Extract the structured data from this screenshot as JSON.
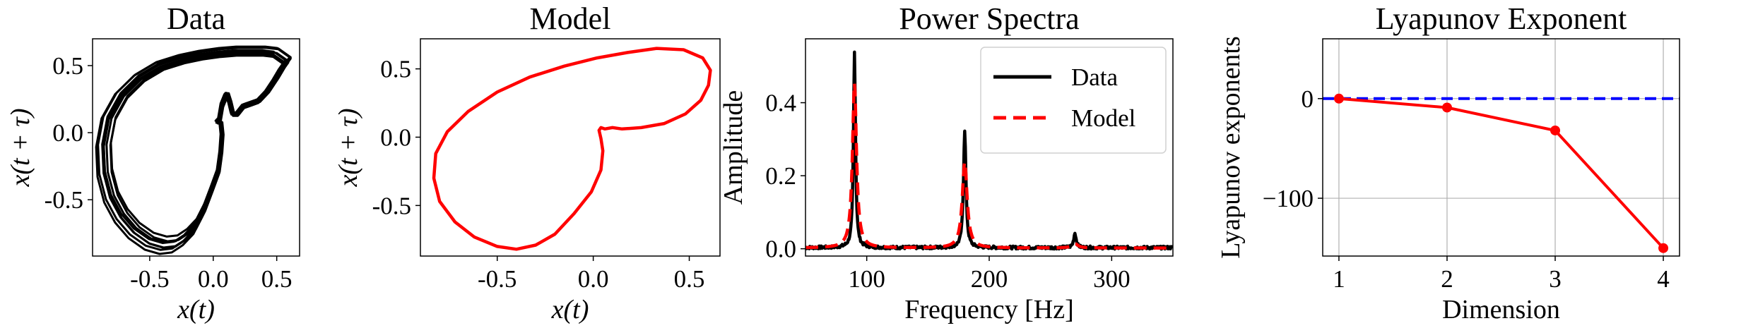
{
  "chart_data": [
    {
      "type": "line",
      "title": "Data",
      "xlabel": "x(t)",
      "ylabel": "x(t + τ)",
      "xlim": [
        -0.95,
        0.68
      ],
      "ylim": [
        -0.92,
        0.7
      ],
      "xticks": [
        -0.5,
        0.0,
        0.5
      ],
      "xtick_labels": [
        "-0.5",
        "0.0",
        "0.5"
      ],
      "yticks": [
        -0.5,
        0.0,
        0.5
      ],
      "ytick_labels": [
        "-0.5",
        "0.0",
        "0.5"
      ],
      "series": [
        {
          "color": "#000000",
          "style": "solid",
          "loops": 8,
          "base_x": [
            0.05,
            0.07,
            0.1,
            0.11,
            0.13,
            0.15,
            0.19,
            0.24,
            0.3,
            0.36,
            0.43,
            0.5,
            0.55,
            0.58,
            0.58,
            0.55,
            0.49,
            0.4,
            0.3,
            0.18,
            0.05,
            -0.1,
            -0.25,
            -0.42,
            -0.58,
            -0.72,
            -0.82,
            -0.86,
            -0.85,
            -0.8,
            -0.72,
            -0.62,
            -0.5,
            -0.39,
            -0.3,
            -0.22,
            -0.14,
            -0.07,
            -0.01,
            0.04,
            0.06,
            0.07,
            0.06,
            0.04,
            0.03,
            0.05
          ],
          "base_y": [
            0.1,
            0.21,
            0.28,
            0.28,
            0.22,
            0.14,
            0.14,
            0.2,
            0.22,
            0.24,
            0.31,
            0.41,
            0.49,
            0.53,
            0.54,
            0.56,
            0.6,
            0.61,
            0.61,
            0.61,
            0.6,
            0.58,
            0.55,
            0.5,
            0.41,
            0.28,
            0.11,
            -0.09,
            -0.3,
            -0.48,
            -0.62,
            -0.73,
            -0.81,
            -0.84,
            -0.83,
            -0.78,
            -0.7,
            -0.57,
            -0.42,
            -0.29,
            -0.15,
            -0.02,
            0.07,
            0.08,
            0.08,
            0.1
          ]
        }
      ]
    },
    {
      "type": "line",
      "title": "Model",
      "xlabel": "x(t)",
      "ylabel": "x(t + τ)",
      "xlim": [
        -0.9,
        0.66
      ],
      "ylim": [
        -0.87,
        0.72
      ],
      "xticks": [
        -0.5,
        0.0,
        0.5
      ],
      "xtick_labels": [
        "-0.5",
        "0.0",
        "0.5"
      ],
      "yticks": [
        -0.5,
        0.0,
        0.5
      ],
      "ytick_labels": [
        "-0.5",
        "0.0",
        "0.5"
      ],
      "series": [
        {
          "color": "#ff0000",
          "style": "solid",
          "x": [
            0.06,
            0.1,
            0.15,
            0.25,
            0.37,
            0.48,
            0.56,
            0.6,
            0.61,
            0.57,
            0.47,
            0.33,
            0.18,
            0.02,
            -0.15,
            -0.33,
            -0.5,
            -0.65,
            -0.76,
            -0.82,
            -0.83,
            -0.8,
            -0.72,
            -0.62,
            -0.5,
            -0.4,
            -0.3,
            -0.2,
            -0.1,
            -0.01,
            0.04,
            0.05,
            0.04,
            0.03,
            0.04,
            0.06
          ],
          "y": [
            0.06,
            0.07,
            0.06,
            0.07,
            0.1,
            0.17,
            0.27,
            0.38,
            0.49,
            0.58,
            0.64,
            0.65,
            0.62,
            0.58,
            0.52,
            0.44,
            0.33,
            0.19,
            0.04,
            -0.12,
            -0.3,
            -0.47,
            -0.62,
            -0.73,
            -0.8,
            -0.82,
            -0.79,
            -0.71,
            -0.56,
            -0.4,
            -0.24,
            -0.1,
            -0.01,
            0.05,
            0.07,
            0.06
          ]
        }
      ]
    },
    {
      "type": "line",
      "title": "Power Spectra",
      "xlabel": "Frequency [Hz]",
      "ylabel": "Amplitude",
      "xlim": [
        50,
        350
      ],
      "ylim": [
        -0.02,
        0.575
      ],
      "xticks": [
        100,
        200,
        300
      ],
      "xtick_labels": [
        "100",
        "200",
        "300"
      ],
      "yticks": [
        0.0,
        0.2,
        0.4
      ],
      "ytick_labels": [
        "0.0",
        "0.2",
        "0.4"
      ],
      "legend": "top-right",
      "series": [
        {
          "name": "Data",
          "color": "#000000",
          "style": "solid",
          "baseline": 0.003,
          "noise": 0.004,
          "peaks": [
            {
              "x": 90,
              "h": 0.535,
              "w": 1.0
            },
            {
              "x": 180,
              "h": 0.322,
              "w": 1.2
            },
            {
              "x": 270,
              "h": 0.04,
              "w": 1.2
            }
          ]
        },
        {
          "name": "Model",
          "color": "#ff0000",
          "style": "dashed",
          "baseline": 0.002,
          "noise": 0,
          "peaks": [
            {
              "x": 90,
              "h": 0.45,
              "w": 2.0
            },
            {
              "x": 180,
              "h": 0.235,
              "w": 2.4
            },
            {
              "x": 270,
              "h": 0.012,
              "w": 3.0
            }
          ]
        }
      ]
    },
    {
      "type": "line",
      "title": "Lyapunov Exponent",
      "xlabel": "Dimension",
      "ylabel": "Lyapunov exponents",
      "xlim": [
        0.85,
        4.15
      ],
      "ylim": [
        -158,
        60
      ],
      "xticks": [
        1,
        2,
        3,
        4
      ],
      "xtick_labels": [
        "1",
        "2",
        "3",
        "4"
      ],
      "yticks": [
        -100,
        0
      ],
      "ytick_labels": [
        "−100",
        "0"
      ],
      "grid": true,
      "reference_line": {
        "y": 0,
        "color": "#0000ff",
        "style": "dashed"
      },
      "series": [
        {
          "color": "#ff0000",
          "style": "solid",
          "markers": true,
          "x": [
            1,
            2,
            3,
            4
          ],
          "y": [
            0,
            -9,
            -32,
            -150
          ]
        }
      ]
    }
  ]
}
